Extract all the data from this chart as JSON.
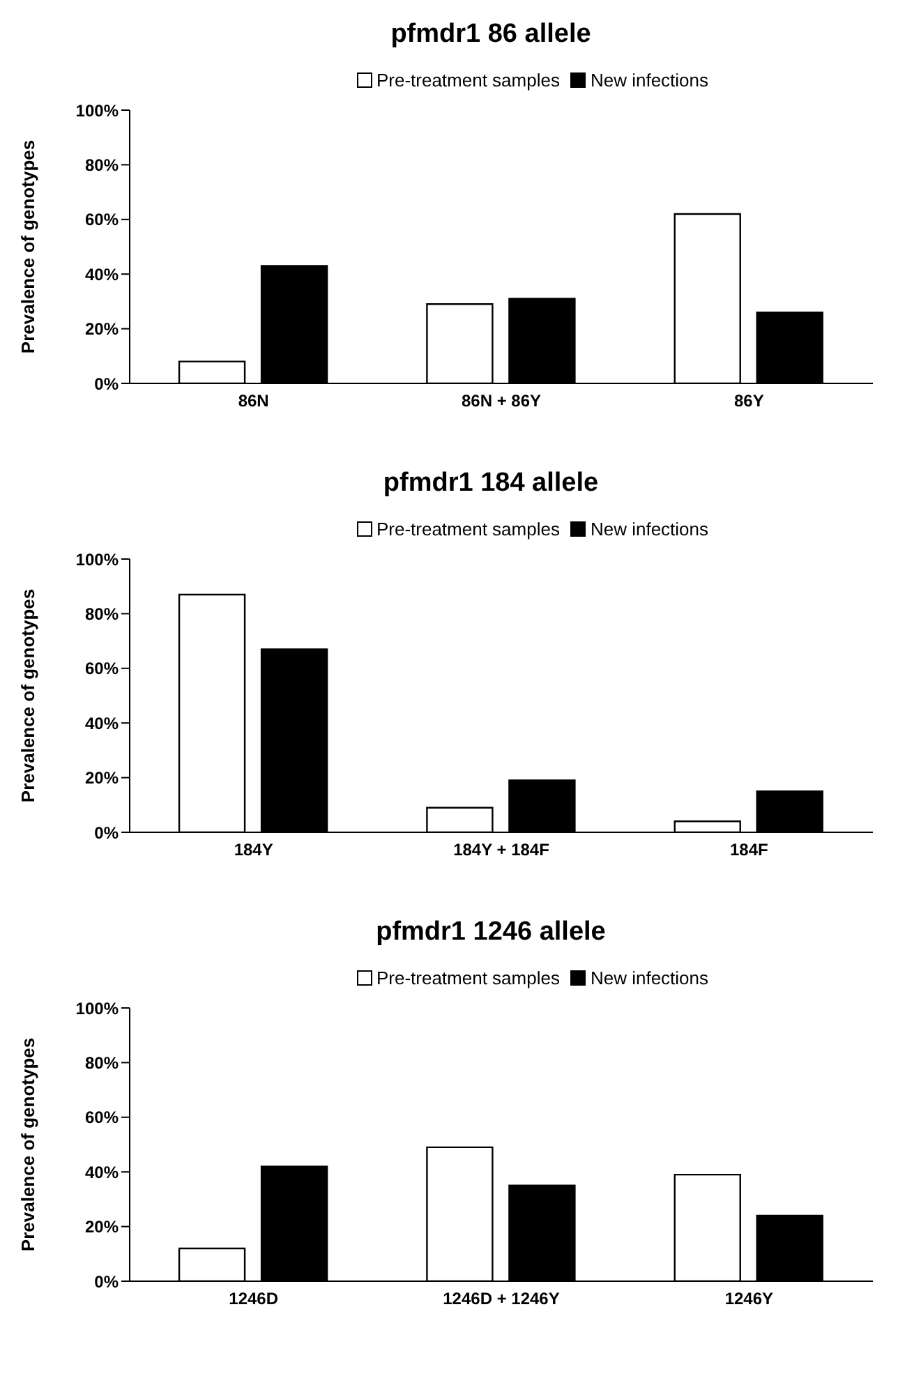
{
  "chart_data": [
    {
      "type": "bar",
      "title": "pfmdr1 86 allele",
      "ylabel": "Prevalence of genotypes",
      "categories": [
        "86N",
        "86N + 86Y",
        "86Y"
      ],
      "series": [
        {
          "name": "Pre-treatment samples",
          "color": "#ffffff",
          "values": [
            8,
            29,
            62
          ]
        },
        {
          "name": "New infections",
          "color": "#000000",
          "values": [
            43,
            31,
            26
          ]
        }
      ],
      "ylim": [
        0,
        100
      ],
      "yticks": [
        {
          "value": 0,
          "label": "0%"
        },
        {
          "value": 20,
          "label": "20%"
        },
        {
          "value": 40,
          "label": "40%"
        },
        {
          "value": 60,
          "label": "60%"
        },
        {
          "value": 80,
          "label": "80%"
        },
        {
          "value": 100,
          "label": "100%"
        }
      ],
      "grid": false,
      "legend": "top"
    },
    {
      "type": "bar",
      "title": "pfmdr1 184 allele",
      "ylabel": "Prevalence of genotypes",
      "categories": [
        "184Y",
        "184Y + 184F",
        "184F"
      ],
      "series": [
        {
          "name": "Pre-treatment samples",
          "color": "#ffffff",
          "values": [
            87,
            9,
            4
          ]
        },
        {
          "name": "New infections",
          "color": "#000000",
          "values": [
            67,
            19,
            15
          ]
        }
      ],
      "ylim": [
        0,
        100
      ],
      "yticks": [
        {
          "value": 0,
          "label": "0%"
        },
        {
          "value": 20,
          "label": "20%"
        },
        {
          "value": 40,
          "label": "40%"
        },
        {
          "value": 60,
          "label": "60%"
        },
        {
          "value": 80,
          "label": "80%"
        },
        {
          "value": 100,
          "label": "100%"
        }
      ],
      "grid": false,
      "legend": "top"
    },
    {
      "type": "bar",
      "title": "pfmdr1 1246 allele",
      "ylabel": "Prevalence of genotypes",
      "categories": [
        "1246D",
        "1246D + 1246Y",
        "1246Y"
      ],
      "series": [
        {
          "name": "Pre-treatment samples",
          "color": "#ffffff",
          "values": [
            12,
            49,
            39
          ]
        },
        {
          "name": "New infections",
          "color": "#000000",
          "values": [
            42,
            35,
            24
          ]
        }
      ],
      "ylim": [
        0,
        100
      ],
      "yticks": [
        {
          "value": 0,
          "label": "0%"
        },
        {
          "value": 20,
          "label": "20%"
        },
        {
          "value": 40,
          "label": "40%"
        },
        {
          "value": 60,
          "label": "60%"
        },
        {
          "value": 80,
          "label": "80%"
        },
        {
          "value": 100,
          "label": "100%"
        }
      ],
      "grid": false,
      "legend": "top"
    }
  ]
}
